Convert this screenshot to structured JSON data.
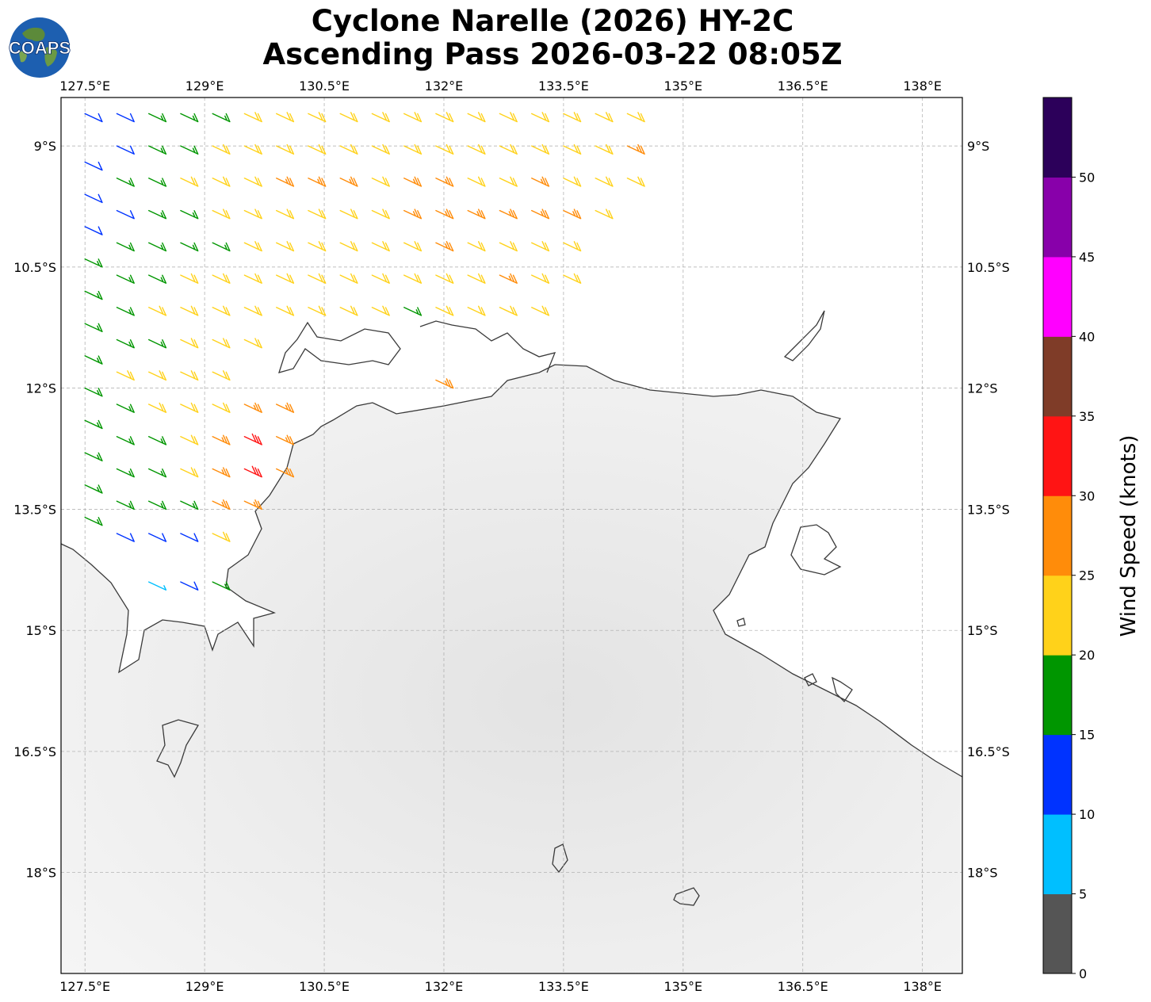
{
  "title": {
    "line1": "Cyclone Narelle (2026) HY-2C",
    "line2": "Ascending Pass 2026-03-22 08:05Z"
  },
  "logo": {
    "text": "COAPS",
    "icon": "globe-icon"
  },
  "map": {
    "lon_range": [
      127.2,
      138.5
    ],
    "lat_range": [
      -19.25,
      -8.4
    ],
    "lon_ticks": [
      127.5,
      129,
      130.5,
      132,
      133.5,
      135,
      136.5,
      138
    ],
    "lon_tick_labels": [
      "127.5°E",
      "129°E",
      "130.5°E",
      "132°E",
      "133.5°E",
      "135°E",
      "136.5°E",
      "138°E"
    ],
    "lat_ticks": [
      -9,
      -10.5,
      -12,
      -13.5,
      -15,
      -16.5,
      -18
    ],
    "lat_tick_labels": [
      "9°S",
      "10.5°S",
      "12°S",
      "13.5°S",
      "15°S",
      "16.5°S",
      "18°S"
    ],
    "coastline_color": "#3a3a3a",
    "land_color": "#f0f0f0",
    "grid": true
  },
  "colorbar": {
    "label": "Wind Speed (knots)",
    "ticks": [
      0,
      5,
      10,
      15,
      20,
      25,
      30,
      35,
      40,
      45,
      50
    ],
    "tick_labels": [
      "0",
      "5",
      "10",
      "15",
      "20",
      "25",
      "30",
      "35",
      "40",
      "45",
      "50"
    ],
    "max": 55,
    "colors": [
      "#555555",
      "#00bfff",
      "#0033ff",
      "#009600",
      "#ffd21a",
      "#ff8c0a",
      "#ff1414",
      "#7f3c28",
      "#ff00ff",
      "#8800aa",
      "#2c005a"
    ]
  },
  "chart_data": {
    "type": "scatter",
    "title": "Cyclone Narelle (2026) HY-2C Ascending Pass 2026-03-22 08:05Z",
    "xlabel": "",
    "ylabel": "",
    "xlim": [
      127.2,
      138.5
    ],
    "ylim": [
      -19.25,
      -8.4
    ],
    "series": [
      {
        "name": "",
        "unit": "knots",
        "description": "wind barbs: [lon, lat, speed_kt] at approximate sample locations",
        "points": [
          [
            127.5,
            -8.6,
            12
          ],
          [
            127.5,
            -9.2,
            12
          ],
          [
            127.5,
            -9.6,
            12
          ],
          [
            127.5,
            -10.0,
            12
          ],
          [
            127.5,
            -10.4,
            15
          ],
          [
            127.5,
            -10.8,
            17
          ],
          [
            127.5,
            -11.2,
            17
          ],
          [
            127.5,
            -11.6,
            17
          ],
          [
            127.5,
            -12.0,
            17
          ],
          [
            127.5,
            -12.4,
            17
          ],
          [
            127.5,
            -12.8,
            17
          ],
          [
            127.5,
            -13.2,
            17
          ],
          [
            127.5,
            -13.6,
            17
          ],
          [
            127.9,
            -8.6,
            12
          ],
          [
            127.9,
            -9.0,
            12
          ],
          [
            127.9,
            -9.4,
            17
          ],
          [
            127.9,
            -9.8,
            12
          ],
          [
            127.9,
            -10.2,
            17
          ],
          [
            127.9,
            -10.6,
            17
          ],
          [
            127.9,
            -11.0,
            17
          ],
          [
            127.9,
            -11.4,
            17
          ],
          [
            127.9,
            -11.8,
            22
          ],
          [
            127.9,
            -12.2,
            17
          ],
          [
            127.9,
            -12.6,
            17
          ],
          [
            127.9,
            -13.0,
            17
          ],
          [
            127.9,
            -13.4,
            17
          ],
          [
            127.9,
            -13.8,
            12
          ],
          [
            128.3,
            -8.6,
            17
          ],
          [
            128.3,
            -9.0,
            17
          ],
          [
            128.3,
            -9.4,
            17
          ],
          [
            128.3,
            -9.8,
            17
          ],
          [
            128.3,
            -10.2,
            17
          ],
          [
            128.3,
            -10.6,
            17
          ],
          [
            128.3,
            -11.0,
            22
          ],
          [
            128.3,
            -11.4,
            17
          ],
          [
            128.3,
            -11.8,
            22
          ],
          [
            128.3,
            -12.2,
            22
          ],
          [
            128.3,
            -12.6,
            17
          ],
          [
            128.3,
            -13.0,
            17
          ],
          [
            128.3,
            -13.4,
            17
          ],
          [
            128.3,
            -13.8,
            12
          ],
          [
            128.3,
            -14.4,
            8
          ],
          [
            128.7,
            -8.6,
            17
          ],
          [
            128.7,
            -9.0,
            17
          ],
          [
            128.7,
            -9.4,
            22
          ],
          [
            128.7,
            -9.8,
            17
          ],
          [
            128.7,
            -10.2,
            17
          ],
          [
            128.7,
            -10.6,
            22
          ],
          [
            128.7,
            -11.0,
            22
          ],
          [
            128.7,
            -11.4,
            22
          ],
          [
            128.7,
            -11.8,
            22
          ],
          [
            128.7,
            -12.2,
            22
          ],
          [
            128.7,
            -12.6,
            22
          ],
          [
            128.7,
            -13.0,
            22
          ],
          [
            128.7,
            -13.4,
            17
          ],
          [
            128.7,
            -13.8,
            12
          ],
          [
            128.7,
            -14.4,
            12
          ],
          [
            129.1,
            -8.6,
            17
          ],
          [
            129.1,
            -9.0,
            22
          ],
          [
            129.1,
            -9.4,
            22
          ],
          [
            129.1,
            -9.8,
            22
          ],
          [
            129.1,
            -10.2,
            17
          ],
          [
            129.1,
            -10.6,
            22
          ],
          [
            129.1,
            -11.0,
            22
          ],
          [
            129.1,
            -11.4,
            22
          ],
          [
            129.1,
            -11.8,
            22
          ],
          [
            129.1,
            -12.2,
            22
          ],
          [
            129.1,
            -12.6,
            27
          ],
          [
            129.1,
            -13.0,
            27
          ],
          [
            129.1,
            -13.4,
            27
          ],
          [
            129.1,
            -13.8,
            22
          ],
          [
            129.1,
            -14.4,
            17
          ],
          [
            129.5,
            -8.6,
            22
          ],
          [
            129.5,
            -9.0,
            22
          ],
          [
            129.5,
            -9.4,
            22
          ],
          [
            129.5,
            -9.8,
            22
          ],
          [
            129.5,
            -10.2,
            22
          ],
          [
            129.5,
            -10.6,
            22
          ],
          [
            129.5,
            -11.0,
            22
          ],
          [
            129.5,
            -11.4,
            22
          ],
          [
            129.5,
            -12.2,
            27
          ],
          [
            129.5,
            -12.6,
            32
          ],
          [
            129.5,
            -13.0,
            32
          ],
          [
            129.5,
            -13.4,
            27
          ],
          [
            129.9,
            -8.6,
            22
          ],
          [
            129.9,
            -9.0,
            22
          ],
          [
            129.9,
            -9.4,
            27
          ],
          [
            129.9,
            -9.8,
            22
          ],
          [
            129.9,
            -10.2,
            22
          ],
          [
            129.9,
            -10.6,
            22
          ],
          [
            129.9,
            -11.0,
            22
          ],
          [
            129.9,
            -12.2,
            27
          ],
          [
            129.9,
            -12.6,
            27
          ],
          [
            129.9,
            -13.0,
            27
          ],
          [
            130.3,
            -8.6,
            22
          ],
          [
            130.3,
            -9.0,
            22
          ],
          [
            130.3,
            -9.4,
            27
          ],
          [
            130.3,
            -9.8,
            22
          ],
          [
            130.3,
            -10.2,
            22
          ],
          [
            130.3,
            -10.6,
            22
          ],
          [
            130.3,
            -11.0,
            22
          ],
          [
            130.7,
            -8.6,
            22
          ],
          [
            130.7,
            -9.0,
            22
          ],
          [
            130.7,
            -9.4,
            27
          ],
          [
            130.7,
            -9.8,
            22
          ],
          [
            130.7,
            -10.2,
            22
          ],
          [
            130.7,
            -10.6,
            22
          ],
          [
            130.7,
            -11.0,
            22
          ],
          [
            131.1,
            -8.6,
            22
          ],
          [
            131.1,
            -9.0,
            22
          ],
          [
            131.1,
            -9.4,
            22
          ],
          [
            131.1,
            -9.8,
            22
          ],
          [
            131.1,
            -10.2,
            22
          ],
          [
            131.1,
            -10.6,
            22
          ],
          [
            131.1,
            -11.0,
            22
          ],
          [
            131.5,
            -8.6,
            22
          ],
          [
            131.5,
            -9.0,
            22
          ],
          [
            131.5,
            -9.4,
            27
          ],
          [
            131.5,
            -9.8,
            27
          ],
          [
            131.5,
            -10.2,
            22
          ],
          [
            131.5,
            -10.6,
            22
          ],
          [
            131.5,
            -11.0,
            17
          ],
          [
            131.9,
            -8.6,
            22
          ],
          [
            131.9,
            -9.0,
            22
          ],
          [
            131.9,
            -9.4,
            27
          ],
          [
            131.9,
            -9.8,
            27
          ],
          [
            131.9,
            -10.2,
            27
          ],
          [
            131.9,
            -10.6,
            22
          ],
          [
            131.9,
            -11.0,
            22
          ],
          [
            131.9,
            -11.9,
            27
          ],
          [
            132.3,
            -8.6,
            22
          ],
          [
            132.3,
            -9.0,
            22
          ],
          [
            132.3,
            -9.4,
            22
          ],
          [
            132.3,
            -9.8,
            27
          ],
          [
            132.3,
            -10.2,
            22
          ],
          [
            132.3,
            -10.6,
            22
          ],
          [
            132.3,
            -11.0,
            22
          ],
          [
            132.7,
            -8.6,
            22
          ],
          [
            132.7,
            -9.0,
            22
          ],
          [
            132.7,
            -9.4,
            22
          ],
          [
            132.7,
            -9.8,
            27
          ],
          [
            132.7,
            -10.2,
            22
          ],
          [
            132.7,
            -10.6,
            27
          ],
          [
            132.7,
            -11.0,
            22
          ],
          [
            133.1,
            -8.6,
            22
          ],
          [
            133.1,
            -9.0,
            22
          ],
          [
            133.1,
            -9.4,
            27
          ],
          [
            133.1,
            -9.8,
            27
          ],
          [
            133.1,
            -10.2,
            22
          ],
          [
            133.1,
            -10.6,
            22
          ],
          [
            133.1,
            -11.0,
            22
          ],
          [
            133.5,
            -8.6,
            22
          ],
          [
            133.5,
            -9.0,
            22
          ],
          [
            133.5,
            -9.4,
            22
          ],
          [
            133.5,
            -9.8,
            27
          ],
          [
            133.5,
            -10.2,
            22
          ],
          [
            133.5,
            -10.6,
            22
          ],
          [
            133.9,
            -8.6,
            22
          ],
          [
            133.9,
            -9.0,
            22
          ],
          [
            133.9,
            -9.4,
            22
          ],
          [
            133.9,
            -9.8,
            22
          ],
          [
            134.3,
            -8.6,
            22
          ],
          [
            134.3,
            -9.0,
            27
          ],
          [
            134.3,
            -9.4,
            22
          ]
        ]
      }
    ]
  }
}
